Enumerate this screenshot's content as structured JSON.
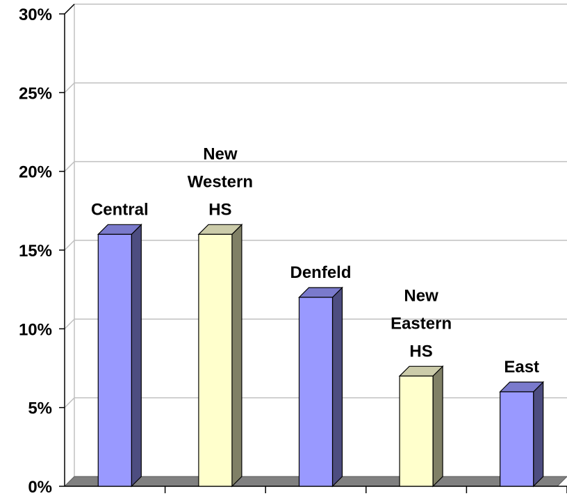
{
  "chart_data": {
    "type": "bar",
    "style": "3d-column",
    "title": "",
    "xlabel": "",
    "ylabel": "",
    "ylim": [
      0,
      30
    ],
    "y_ticks": [
      "0%",
      "5%",
      "10%",
      "15%",
      "20%",
      "25%",
      "30%"
    ],
    "grid": true,
    "categories": [
      [
        "Central"
      ],
      [
        "New",
        "Western",
        "HS"
      ],
      [
        "Denfeld"
      ],
      [
        "New",
        "Eastern",
        "HS"
      ],
      [
        "East"
      ]
    ],
    "values": [
      16,
      16,
      12,
      7,
      6
    ],
    "bar_colors": [
      "#9999ff",
      "#ffffcc",
      "#9999ff",
      "#ffffcc",
      "#9999ff"
    ],
    "bar_side_colors": [
      "#4d4d80",
      "#808066",
      "#4d4d80",
      "#808066",
      "#4d4d80"
    ],
    "bar_top_colors": [
      "#7a7acc",
      "#ccccaa",
      "#7a7acc",
      "#ccccaa",
      "#7a7acc"
    ]
  }
}
